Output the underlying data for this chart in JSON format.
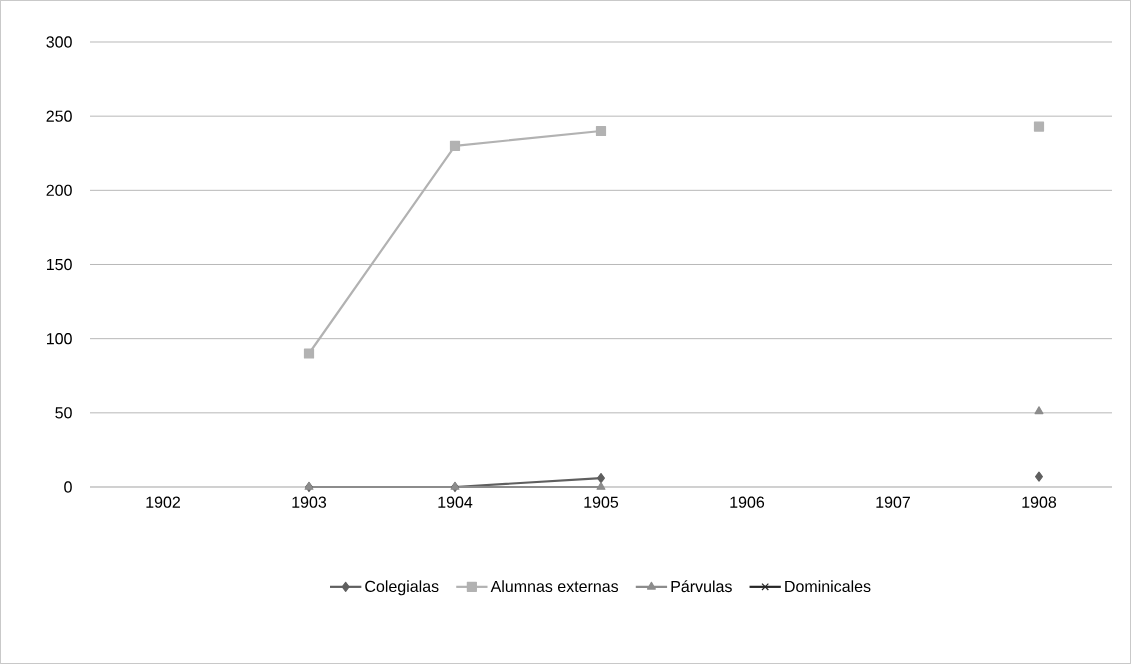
{
  "chart_data": {
    "type": "line",
    "categories": [
      "1902",
      "1903",
      "1904",
      "1905",
      "1906",
      "1907",
      "1908"
    ],
    "series": [
      {
        "name": "Colegialas",
        "color": "#5f5f5f",
        "marker": "diamond",
        "values": [
          null,
          0,
          0,
          6,
          null,
          null,
          7
        ]
      },
      {
        "name": "Alumnas externas",
        "color": "#b2b2b2",
        "marker": "square",
        "values": [
          null,
          90,
          230,
          240,
          null,
          null,
          243
        ]
      },
      {
        "name": "Párvulas",
        "color": "#8c8c8c",
        "marker": "triangle",
        "values": [
          null,
          0,
          0,
          0,
          null,
          null,
          51
        ]
      },
      {
        "name": "Dominicales",
        "color": "#262626",
        "marker": "cross",
        "values": [
          null,
          null,
          null,
          null,
          null,
          null,
          null
        ]
      }
    ],
    "ylim": [
      0,
      300
    ],
    "yticks": [
      0,
      50,
      100,
      150,
      200,
      250,
      300
    ],
    "grid": "y",
    "legend": "bottom"
  }
}
